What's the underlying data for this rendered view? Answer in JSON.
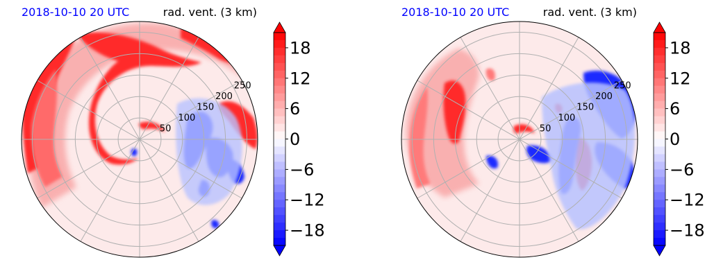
{
  "chart_data": [
    {
      "type": "heatmap",
      "projection": "polar",
      "title_left": "2018-10-10 20 UTC",
      "title_right": "rad. vent. (3 km)",
      "radial_ticks": [
        50,
        100,
        150,
        200,
        250
      ],
      "rlim": [
        0,
        275
      ],
      "theta_grid_deg": [
        0,
        30,
        60,
        90,
        120,
        150,
        180,
        210,
        240,
        270,
        300,
        330
      ],
      "grid": true,
      "colorbar": {
        "ticks": [
          "18",
          "12",
          "6",
          "0",
          "−6",
          "−12",
          "−18"
        ],
        "vmin": -21,
        "vmax": 21,
        "extend": "both",
        "cmap": "bwr"
      },
      "colors": {
        "positive": "#ff0000",
        "negative": "#0000ff",
        "zero": "#ffffff"
      }
    },
    {
      "type": "heatmap",
      "projection": "polar",
      "title_left": "2018-10-10 20 UTC",
      "title_right": "rad. vent. (3 km)",
      "radial_ticks": [
        50,
        100,
        150,
        200,
        250
      ],
      "rlim": [
        0,
        275
      ],
      "theta_grid_deg": [
        0,
        30,
        60,
        90,
        120,
        150,
        180,
        210,
        240,
        270,
        300,
        330
      ],
      "grid": true,
      "colorbar": {
        "ticks": [
          "18",
          "12",
          "6",
          "0",
          "−6",
          "−12",
          "−18"
        ],
        "vmin": -21,
        "vmax": 21,
        "extend": "both",
        "cmap": "bwr"
      },
      "colors": {
        "positive": "#ff0000",
        "negative": "#0000ff",
        "zero": "#ffffff"
      }
    }
  ]
}
